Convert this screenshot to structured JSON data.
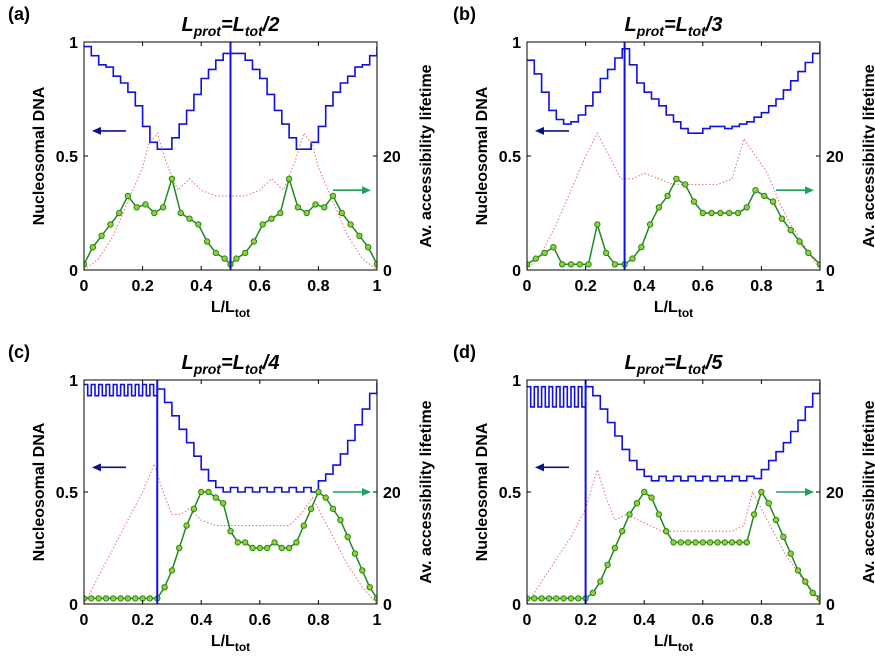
{
  "colors": {
    "nucleosomal": "#1010e0",
    "lifetime": "#1f8a1f",
    "marker_fill": "#9acd32",
    "dotted": "#e87a80",
    "arrow_left": "#10108a",
    "arrow_right": "#20a060"
  },
  "chart_data": [
    {
      "type": "line",
      "panel_label": "(a)",
      "title": {
        "main": "L",
        "main_sub": "prot",
        "eq": "=L",
        "eq_sub": "tot",
        "tail": "/2"
      },
      "xlabel": {
        "main": "L/L",
        "sub": "tot"
      },
      "ylabel_left": "Nucleosomal DNA",
      "ylabel_right": "Av. accessibility lifetime",
      "xlim": [
        0,
        1
      ],
      "ylim_left": [
        0,
        1
      ],
      "ylim_right": [
        0,
        40
      ],
      "xticks": [
        "0",
        "0.2",
        "0.4",
        "0.6",
        "0.8",
        "1"
      ],
      "yticks_left": [
        "0",
        "0.5",
        "1"
      ],
      "yticks_right": [
        "0",
        "20"
      ],
      "vline_x": 0.5,
      "series": [
        {
          "axis": "left",
          "style": "step",
          "x": [
            0.0,
            0.025,
            0.05,
            0.075,
            0.1,
            0.125,
            0.15,
            0.175,
            0.2,
            0.225,
            0.25,
            0.275,
            0.3,
            0.325,
            0.35,
            0.375,
            0.4,
            0.425,
            0.45,
            0.475,
            0.5,
            0.525,
            0.55,
            0.575,
            0.6,
            0.625,
            0.65,
            0.675,
            0.7,
            0.725,
            0.75,
            0.775,
            0.8,
            0.825,
            0.85,
            0.875,
            0.9,
            0.925,
            0.95,
            0.975,
            1.0
          ],
          "y": [
            0.98,
            0.94,
            0.9,
            0.89,
            0.85,
            0.82,
            0.78,
            0.72,
            0.63,
            0.56,
            0.53,
            0.53,
            0.58,
            0.64,
            0.7,
            0.77,
            0.84,
            0.88,
            0.92,
            0.95,
            0.95,
            0.95,
            0.92,
            0.88,
            0.84,
            0.77,
            0.7,
            0.64,
            0.58,
            0.53,
            0.53,
            0.56,
            0.63,
            0.72,
            0.78,
            0.82,
            0.85,
            0.89,
            0.9,
            0.94,
            0.98
          ]
        },
        {
          "axis": "right",
          "style": "dotted",
          "x": [
            0.0,
            0.05,
            0.1,
            0.15,
            0.2,
            0.22,
            0.25,
            0.28,
            0.32,
            0.36,
            0.4,
            0.45,
            0.5,
            0.55,
            0.6,
            0.64,
            0.68,
            0.72,
            0.75,
            0.78,
            0.8,
            0.85,
            0.9,
            0.95,
            1.0
          ],
          "y": [
            0,
            2,
            6,
            12,
            18,
            22,
            24,
            19,
            14,
            16,
            14,
            13,
            13,
            13,
            14,
            16,
            14,
            19,
            24,
            22,
            18,
            12,
            6,
            2,
            0
          ]
        },
        {
          "axis": "right",
          "style": "markers",
          "x": [
            0.0,
            0.03,
            0.06,
            0.09,
            0.12,
            0.15,
            0.18,
            0.21,
            0.24,
            0.27,
            0.3,
            0.33,
            0.36,
            0.39,
            0.42,
            0.45,
            0.48,
            0.5,
            0.52,
            0.55,
            0.58,
            0.61,
            0.64,
            0.67,
            0.7,
            0.73,
            0.76,
            0.79,
            0.82,
            0.85,
            0.88,
            0.91,
            0.94,
            0.97,
            1.0
          ],
          "y": [
            1,
            4,
            6,
            8,
            10,
            13,
            11,
            11.5,
            10,
            11,
            16,
            10,
            9,
            8,
            5,
            3,
            2,
            1,
            2,
            3,
            5,
            8,
            9,
            10,
            16,
            11,
            10,
            11.5,
            11,
            13,
            10,
            8,
            6,
            4,
            1
          ]
        }
      ]
    },
    {
      "type": "line",
      "panel_label": "(b)",
      "title": {
        "main": "L",
        "main_sub": "prot",
        "eq": "=L",
        "eq_sub": "tot",
        "tail": "/3"
      },
      "xlabel": {
        "main": "L/L",
        "sub": "tot"
      },
      "ylabel_left": "Nucleosomal DNA",
      "ylabel_right": "Av. accessibility lifetime",
      "xlim": [
        0,
        1
      ],
      "ylim_left": [
        0,
        1
      ],
      "ylim_right": [
        0,
        40
      ],
      "xticks": [
        "0",
        "0.2",
        "0.4",
        "0.6",
        "0.8",
        "1"
      ],
      "yticks_left": [
        "0",
        "0.5",
        "1"
      ],
      "yticks_right": [
        "0",
        "20"
      ],
      "vline_x": 0.333,
      "series": [
        {
          "axis": "left",
          "style": "step",
          "x": [
            0.0,
            0.025,
            0.05,
            0.075,
            0.1,
            0.125,
            0.15,
            0.175,
            0.2,
            0.225,
            0.25,
            0.275,
            0.3,
            0.325,
            0.35,
            0.375,
            0.4,
            0.425,
            0.45,
            0.475,
            0.5,
            0.525,
            0.55,
            0.575,
            0.6,
            0.625,
            0.65,
            0.675,
            0.7,
            0.725,
            0.75,
            0.775,
            0.8,
            0.825,
            0.85,
            0.875,
            0.9,
            0.925,
            0.95,
            0.975,
            1.0
          ],
          "y": [
            0.92,
            0.86,
            0.78,
            0.7,
            0.66,
            0.64,
            0.65,
            0.68,
            0.72,
            0.78,
            0.84,
            0.88,
            0.93,
            0.97,
            0.9,
            0.82,
            0.78,
            0.75,
            0.72,
            0.68,
            0.65,
            0.62,
            0.6,
            0.6,
            0.62,
            0.63,
            0.63,
            0.62,
            0.63,
            0.64,
            0.65,
            0.67,
            0.69,
            0.72,
            0.75,
            0.79,
            0.83,
            0.87,
            0.91,
            0.95,
            0.99
          ]
        },
        {
          "axis": "right",
          "style": "dotted",
          "x": [
            0.0,
            0.05,
            0.1,
            0.15,
            0.2,
            0.24,
            0.28,
            0.32,
            0.36,
            0.4,
            0.45,
            0.5,
            0.55,
            0.6,
            0.65,
            0.7,
            0.74,
            0.78,
            0.82,
            0.86,
            0.9,
            0.95,
            1.0
          ],
          "y": [
            0,
            3,
            8,
            14,
            20,
            24,
            20,
            16,
            16,
            17,
            16,
            15,
            15,
            15,
            15,
            16,
            23,
            20,
            17,
            12,
            8,
            4,
            0
          ]
        },
        {
          "axis": "right",
          "style": "markers",
          "x": [
            0.0,
            0.03,
            0.06,
            0.09,
            0.12,
            0.15,
            0.18,
            0.21,
            0.24,
            0.27,
            0.3,
            0.333,
            0.36,
            0.39,
            0.42,
            0.45,
            0.48,
            0.51,
            0.54,
            0.57,
            0.6,
            0.63,
            0.66,
            0.69,
            0.72,
            0.75,
            0.78,
            0.81,
            0.84,
            0.87,
            0.9,
            0.93,
            0.96,
            1.0
          ],
          "y": [
            1,
            2,
            3,
            4,
            1,
            1,
            1,
            1,
            8,
            3,
            1,
            1,
            2,
            4,
            8,
            11,
            13,
            16,
            15,
            12,
            10,
            10,
            10,
            10,
            10,
            11,
            14,
            13,
            12,
            9,
            7,
            5,
            3,
            1
          ]
        }
      ]
    },
    {
      "type": "line",
      "panel_label": "(c)",
      "title": {
        "main": "L",
        "main_sub": "prot",
        "eq": "=L",
        "eq_sub": "tot",
        "tail": "/4"
      },
      "xlabel": {
        "main": "L/L",
        "sub": "tot"
      },
      "ylabel_left": "Nucleosomal DNA",
      "ylabel_right": "Av. accessibility lifetime",
      "xlim": [
        0,
        1
      ],
      "ylim_left": [
        0,
        1
      ],
      "ylim_right": [
        0,
        40
      ],
      "xticks": [
        "0",
        "0.2",
        "0.4",
        "0.6",
        "0.8",
        "1"
      ],
      "yticks_left": [
        "0",
        "0.5",
        "1"
      ],
      "yticks_right": [
        "0",
        "20"
      ],
      "vline_x": 0.25,
      "series": [
        {
          "axis": "left",
          "style": "step",
          "x": [
            0.0,
            0.0125,
            0.025,
            0.0375,
            0.05,
            0.0625,
            0.075,
            0.0875,
            0.1,
            0.1125,
            0.125,
            0.1375,
            0.15,
            0.1625,
            0.175,
            0.1875,
            0.2,
            0.2125,
            0.225,
            0.2375,
            0.25,
            0.275,
            0.3,
            0.325,
            0.35,
            0.375,
            0.4,
            0.425,
            0.45,
            0.475,
            0.5,
            0.525,
            0.55,
            0.575,
            0.6,
            0.625,
            0.65,
            0.675,
            0.7,
            0.725,
            0.75,
            0.775,
            0.8,
            0.825,
            0.85,
            0.875,
            0.9,
            0.925,
            0.95,
            0.975,
            1.0
          ],
          "y": [
            0.98,
            0.93,
            0.98,
            0.93,
            0.98,
            0.93,
            0.98,
            0.93,
            0.98,
            0.93,
            0.98,
            0.93,
            0.98,
            0.93,
            0.98,
            0.93,
            0.98,
            0.93,
            0.98,
            0.93,
            0.96,
            0.9,
            0.84,
            0.78,
            0.72,
            0.66,
            0.6,
            0.55,
            0.52,
            0.5,
            0.52,
            0.5,
            0.52,
            0.5,
            0.52,
            0.5,
            0.52,
            0.5,
            0.52,
            0.5,
            0.52,
            0.5,
            0.55,
            0.58,
            0.62,
            0.67,
            0.73,
            0.8,
            0.87,
            0.94,
            0.99
          ]
        },
        {
          "axis": "right",
          "style": "dotted",
          "x": [
            0.0,
            0.05,
            0.1,
            0.15,
            0.2,
            0.24,
            0.27,
            0.3,
            0.33,
            0.36,
            0.4,
            0.45,
            0.5,
            0.55,
            0.6,
            0.65,
            0.7,
            0.74,
            0.78,
            0.82,
            0.86,
            0.9,
            0.95,
            1.0
          ],
          "y": [
            0,
            5,
            10,
            15,
            20,
            25,
            20,
            16,
            16,
            17,
            15,
            14,
            14,
            14,
            14,
            14,
            14,
            16,
            19,
            15,
            11,
            7,
            3,
            0
          ]
        },
        {
          "axis": "right",
          "style": "markers",
          "x": [
            0.0,
            0.025,
            0.05,
            0.075,
            0.1,
            0.125,
            0.15,
            0.175,
            0.2,
            0.225,
            0.25,
            0.275,
            0.3,
            0.325,
            0.35,
            0.375,
            0.4,
            0.425,
            0.45,
            0.475,
            0.5,
            0.525,
            0.55,
            0.575,
            0.6,
            0.625,
            0.65,
            0.675,
            0.7,
            0.725,
            0.75,
            0.775,
            0.8,
            0.825,
            0.85,
            0.875,
            0.9,
            0.925,
            0.95,
            0.975,
            1.0
          ],
          "y": [
            1,
            1,
            1,
            1,
            1,
            1,
            1,
            1,
            1,
            1,
            1,
            3,
            6,
            10,
            14,
            17,
            20,
            20,
            19,
            18,
            13,
            11,
            11,
            10,
            10,
            10,
            11,
            10,
            10,
            11,
            14,
            17,
            20,
            19,
            17,
            15,
            12,
            9,
            6,
            3,
            1
          ]
        }
      ]
    },
    {
      "type": "line",
      "panel_label": "(d)",
      "title": {
        "main": "L",
        "main_sub": "prot",
        "eq": "=L",
        "eq_sub": "tot",
        "tail": "/5"
      },
      "xlabel": {
        "main": "L/L",
        "sub": "tot"
      },
      "ylabel_left": "Nucleosomal DNA",
      "ylabel_right": "Av. accessibility lifetime",
      "xlim": [
        0,
        1
      ],
      "ylim_left": [
        0,
        1
      ],
      "ylim_right": [
        0,
        40
      ],
      "xticks": [
        "0",
        "0.2",
        "0.4",
        "0.6",
        "0.8",
        "1"
      ],
      "yticks_left": [
        "0",
        "0.5",
        "1"
      ],
      "yticks_right": [
        "0",
        "20"
      ],
      "vline_x": 0.2,
      "series": [
        {
          "axis": "left",
          "style": "step",
          "x": [
            0.0,
            0.0125,
            0.025,
            0.0375,
            0.05,
            0.0625,
            0.075,
            0.0875,
            0.1,
            0.1125,
            0.125,
            0.1375,
            0.15,
            0.1625,
            0.175,
            0.1875,
            0.2,
            0.225,
            0.25,
            0.275,
            0.3,
            0.325,
            0.35,
            0.375,
            0.4,
            0.425,
            0.45,
            0.475,
            0.5,
            0.525,
            0.55,
            0.575,
            0.6,
            0.625,
            0.65,
            0.675,
            0.7,
            0.725,
            0.75,
            0.775,
            0.8,
            0.825,
            0.85,
            0.875,
            0.9,
            0.925,
            0.95,
            0.975,
            1.0
          ],
          "y": [
            0.97,
            0.88,
            0.97,
            0.88,
            0.97,
            0.88,
            0.97,
            0.88,
            0.97,
            0.88,
            0.97,
            0.88,
            0.97,
            0.88,
            0.97,
            0.88,
            0.97,
            0.93,
            0.87,
            0.81,
            0.75,
            0.69,
            0.64,
            0.6,
            0.57,
            0.55,
            0.57,
            0.55,
            0.57,
            0.55,
            0.57,
            0.55,
            0.57,
            0.55,
            0.57,
            0.55,
            0.57,
            0.55,
            0.57,
            0.56,
            0.6,
            0.64,
            0.68,
            0.72,
            0.77,
            0.82,
            0.88,
            0.94,
            0.99
          ]
        },
        {
          "axis": "right",
          "style": "dotted",
          "x": [
            0.0,
            0.05,
            0.1,
            0.15,
            0.2,
            0.24,
            0.27,
            0.3,
            0.34,
            0.38,
            0.42,
            0.46,
            0.5,
            0.55,
            0.6,
            0.65,
            0.7,
            0.74,
            0.77,
            0.8,
            0.84,
            0.88,
            0.92,
            0.96,
            1.0
          ],
          "y": [
            0,
            4,
            8,
            12,
            17,
            24,
            19,
            15,
            16,
            15,
            14,
            13,
            13,
            13,
            13,
            13,
            13,
            14,
            20,
            17,
            13,
            9,
            6,
            3,
            0
          ]
        },
        {
          "axis": "right",
          "style": "markers",
          "x": [
            0.0,
            0.025,
            0.05,
            0.075,
            0.1,
            0.125,
            0.15,
            0.175,
            0.2,
            0.225,
            0.25,
            0.275,
            0.3,
            0.325,
            0.35,
            0.375,
            0.4,
            0.425,
            0.45,
            0.475,
            0.5,
            0.525,
            0.55,
            0.575,
            0.6,
            0.625,
            0.65,
            0.675,
            0.7,
            0.725,
            0.75,
            0.775,
            0.8,
            0.825,
            0.85,
            0.875,
            0.9,
            0.925,
            0.95,
            0.975,
            1.0
          ],
          "y": [
            1,
            1,
            1,
            1,
            1,
            1,
            1,
            1,
            1,
            2,
            4,
            7,
            10,
            13,
            16,
            18,
            20,
            19,
            16,
            13,
            11,
            11,
            11,
            11,
            11,
            11,
            11,
            11,
            11,
            11,
            11,
            16,
            20,
            18,
            15,
            12,
            9,
            6,
            4,
            2,
            1
          ]
        }
      ]
    }
  ]
}
